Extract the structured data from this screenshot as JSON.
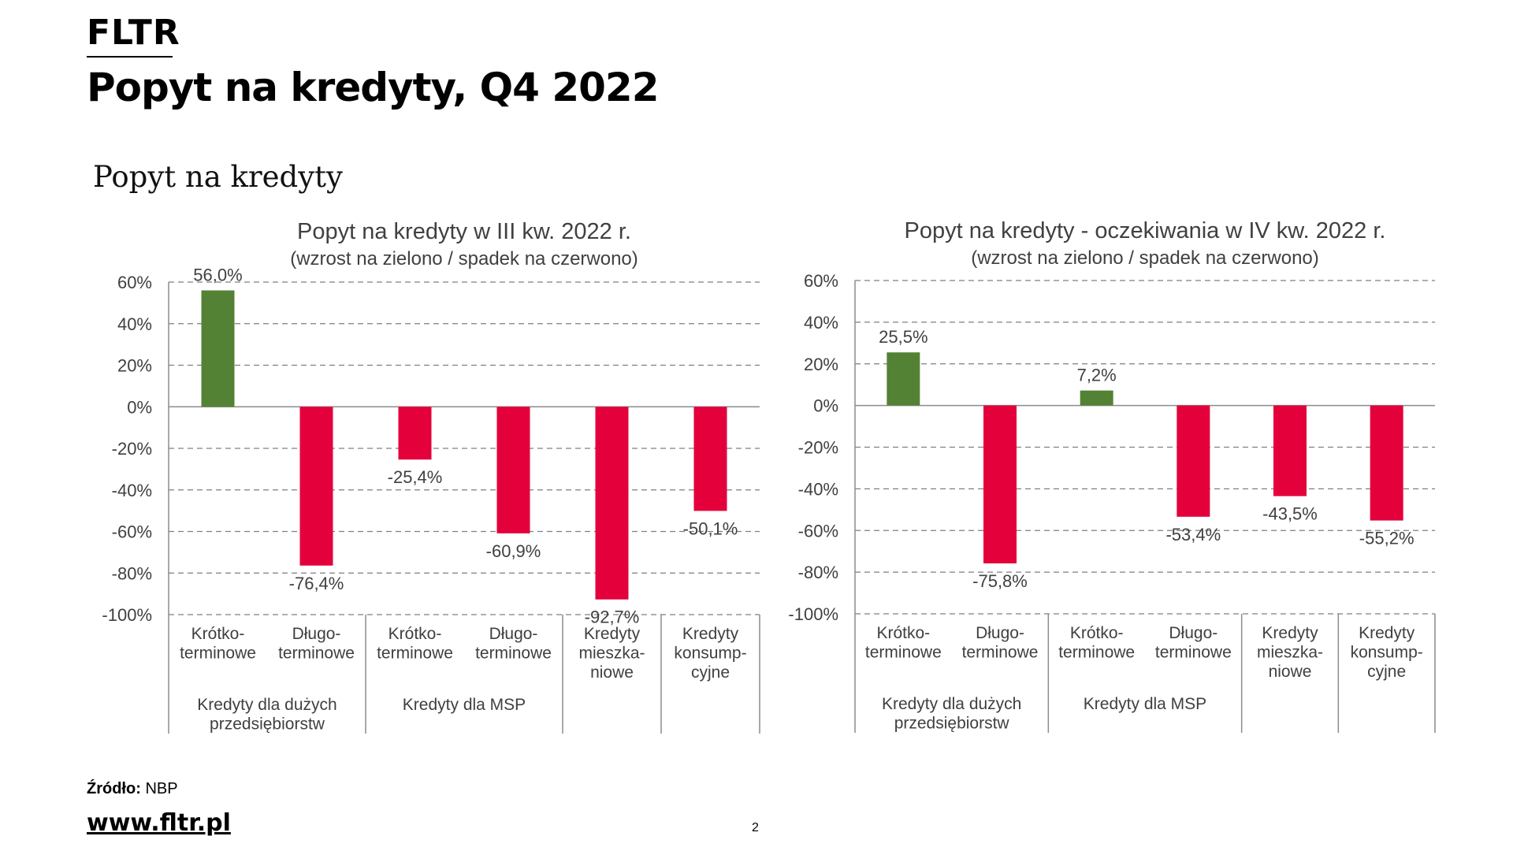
{
  "header": {
    "logo": "FLTR",
    "title": "Popyt na kredyty, Q4 2022"
  },
  "section_title": "Popyt na kredyty",
  "colors": {
    "increase": "#548235",
    "decrease": "#e4003b",
    "text": "#404040",
    "grid": "#7f7f7f"
  },
  "chart_data": [
    {
      "type": "bar",
      "title": "Popyt na kredyty w III kw. 2022 r.",
      "subtitle": "(wzrost na zielono / spadek na czerwono)",
      "categories": [
        [
          "Krótko-",
          "terminowe"
        ],
        [
          "Długo-",
          "terminowe"
        ],
        [
          "Krótko-",
          "terminowe"
        ],
        [
          "Długo-",
          "terminowe"
        ],
        [
          "Kredyty",
          "mieszka-",
          "niowe"
        ],
        [
          "Kredyty",
          "konsump-",
          "cyjne"
        ]
      ],
      "groups": [
        [
          "Kredyty dla dużych",
          "przedsiębiorstw"
        ],
        [
          "Kredyty dla MSP"
        ],
        [
          ""
        ],
        [
          ""
        ]
      ],
      "values": [
        56.0,
        -76.4,
        -25.4,
        -60.9,
        -92.7,
        -50.1
      ],
      "value_labels": [
        "56,0%",
        "-76,4%",
        "-25,4%",
        "-60,9%",
        "-92,7%",
        "-50,1%"
      ],
      "yticks": [
        "60%",
        "40%",
        "20%",
        "0%",
        "-20%",
        "-40%",
        "-60%",
        "-80%",
        "-100%"
      ],
      "ylim": [
        -100,
        60
      ],
      "grid": true
    },
    {
      "type": "bar",
      "title": "Popyt na kredyty - oczekiwania w IV kw. 2022 r.",
      "subtitle": "(wzrost na zielono / spadek na czerwono)",
      "categories": [
        [
          "Krótko-",
          "terminowe"
        ],
        [
          "Długo-",
          "terminowe"
        ],
        [
          "Krótko-",
          "terminowe"
        ],
        [
          "Długo-",
          "terminowe"
        ],
        [
          "Kredyty",
          "mieszka-",
          "niowe"
        ],
        [
          "Kredyty",
          "konsump-",
          "cyjne"
        ]
      ],
      "groups": [
        [
          "Kredyty dla dużych",
          "przedsiębiorstw"
        ],
        [
          "Kredyty dla MSP"
        ],
        [
          ""
        ],
        [
          ""
        ]
      ],
      "values": [
        25.5,
        -75.8,
        7.2,
        -53.4,
        -43.5,
        -55.2
      ],
      "value_labels": [
        "25,5%",
        "-75,8%",
        "7,2%",
        "-53,4%",
        "-43,5%",
        "-55,2%"
      ],
      "yticks": [
        "60%",
        "40%",
        "20%",
        "0%",
        "-20%",
        "-40%",
        "-60%",
        "-80%",
        "-100%"
      ],
      "ylim": [
        -100,
        60
      ],
      "grid": true
    }
  ],
  "footer": {
    "source_label": "Źródło:",
    "source_value": "NBP",
    "website": "www.fltr.pl",
    "page_number": "2"
  }
}
